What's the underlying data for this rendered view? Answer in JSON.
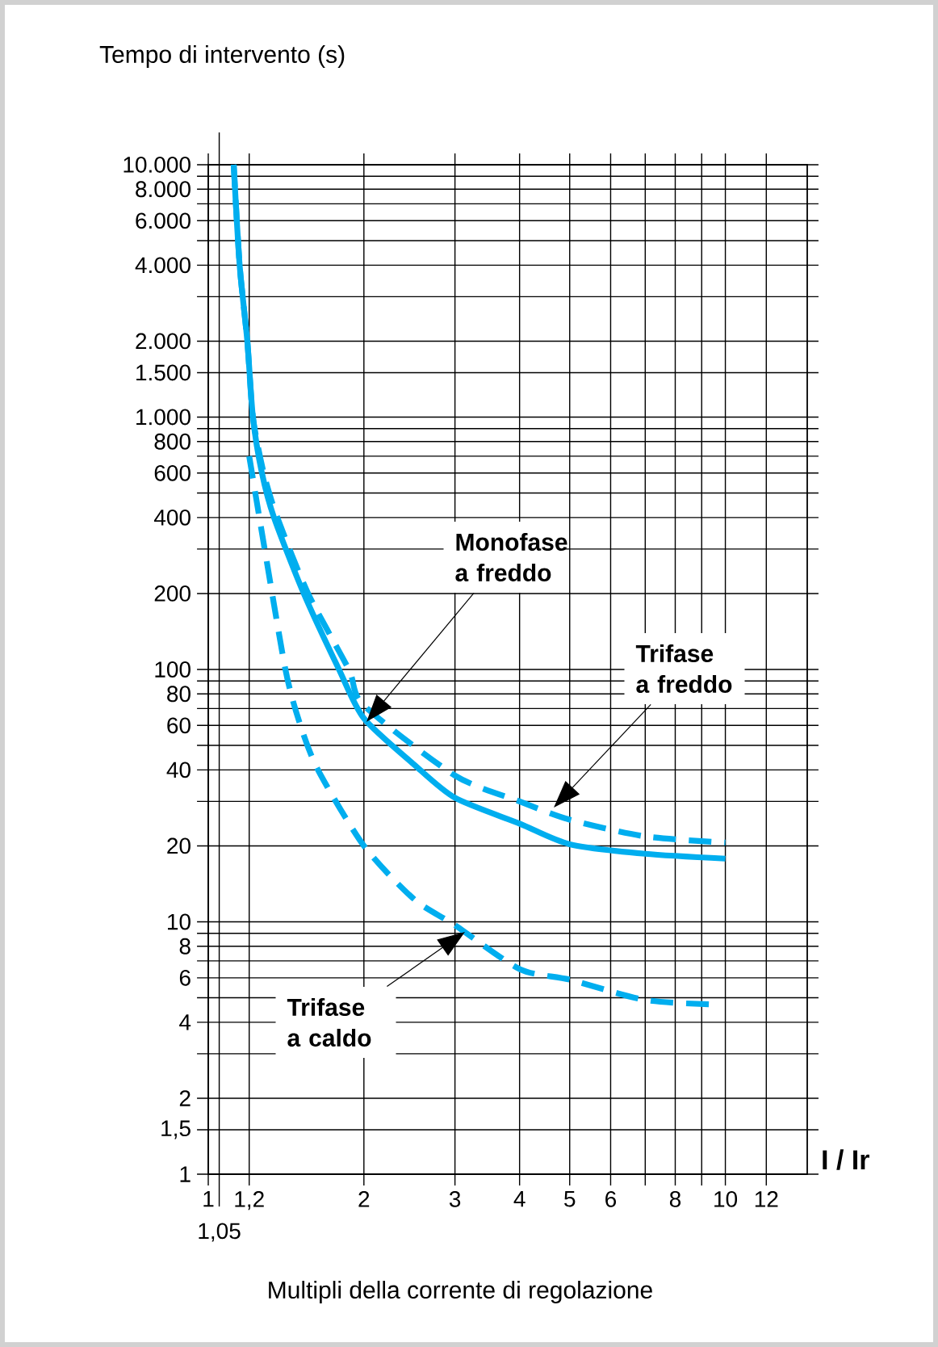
{
  "chart_data": {
    "type": "line",
    "ylabel": "Tempo di intervento  (s)",
    "xlabel": "Multipli della corrente di regolazione",
    "log": "xy",
    "grid": true,
    "xlim": [
      1,
      14.4
    ],
    "ylim": [
      1,
      10000
    ],
    "xticks": [
      1,
      {
        "value": 1.05,
        "label": null
      },
      {
        "value": 1.2,
        "label": "1,2"
      },
      2,
      3,
      4,
      5,
      6,
      {
        "value": 7,
        "label": null
      },
      8,
      {
        "value": 9,
        "label": null
      },
      10,
      12
    ],
    "yticks": [
      1,
      {
        "value": 1.5,
        "label": "1,5"
      },
      2,
      {
        "value": 3,
        "label": null
      },
      4,
      {
        "value": 5,
        "label": null
      },
      6,
      {
        "value": 7,
        "label": null
      },
      8,
      {
        "value": 9,
        "label": null
      },
      10,
      20,
      {
        "value": 30,
        "label": null
      },
      40,
      {
        "value": 50,
        "label": null
      },
      60,
      {
        "value": 70,
        "label": null
      },
      80,
      {
        "value": 90,
        "label": null
      },
      100,
      200,
      {
        "value": 300,
        "label": null
      },
      400,
      {
        "value": 500,
        "label": null
      },
      600,
      {
        "value": 700,
        "label": null
      },
      800,
      {
        "value": 900,
        "label": null
      },
      {
        "value": 1000,
        "label": "1.000"
      },
      {
        "value": 1500,
        "label": "1.500"
      },
      {
        "value": 2000,
        "label": "2.000"
      },
      {
        "value": 3000,
        "label": null
      },
      {
        "value": 4000,
        "label": "4.000"
      },
      {
        "value": 5000,
        "label": null
      },
      {
        "value": 6000,
        "label": "6.000"
      },
      {
        "value": 7000,
        "label": null
      },
      {
        "value": 8000,
        "label": "8.000"
      },
      {
        "value": 9000,
        "label": null
      },
      {
        "value": 10000,
        "label": "10.000"
      }
    ],
    "series": [
      {
        "color": "#00aeef",
        "line_style": "solid",
        "x": [
          1.12,
          1.15,
          1.19,
          1.22,
          1.27,
          1.34,
          1.53,
          1.79,
          2,
          2.5,
          3,
          4,
          5,
          7,
          10
        ],
        "values": [
          10000,
          4000,
          2000,
          1000,
          600,
          400,
          200,
          100,
          64,
          42,
          31,
          24.5,
          20.3,
          18.6,
          17.8
        ]
      },
      {
        "color": "#00aeef",
        "line_style": "dashed",
        "x": [
          1.12,
          1.15,
          1.19,
          1.22,
          1.28,
          1.36,
          1.56,
          1.87,
          2,
          3,
          4,
          5,
          7,
          10
        ],
        "values": [
          10000,
          4000,
          2000,
          1000,
          600,
          400,
          200,
          100,
          72,
          38,
          30,
          25.4,
          21.8,
          20.6
        ]
      },
      {
        "color": "#00aeef",
        "line_style": "dashed",
        "x": [
          1.2,
          1.28,
          1.41,
          1.5,
          1.63,
          2,
          2.5,
          3,
          4,
          5,
          7,
          9.6
        ],
        "values": [
          700,
          316,
          100,
          62,
          40,
          20,
          12.3,
          9.7,
          6.5,
          5.9,
          4.9,
          4.7
        ]
      }
    ],
    "annotations": [
      "I / Ir",
      "1,05",
      "Monofase a freddo",
      "Trifase a freddo",
      "Trifase a caldo"
    ]
  }
}
